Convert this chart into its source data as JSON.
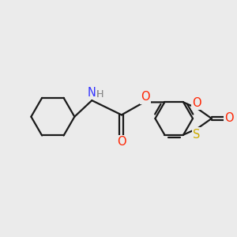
{
  "background_color": "#ebebeb",
  "bond_color": "#1a1a1a",
  "N_color": "#3333ff",
  "O_color": "#ff2200",
  "S_color": "#ccaa00",
  "NH_H_color": "#888888",
  "line_width": 1.6,
  "figsize": [
    3.0,
    3.0
  ],
  "dpi": 100,
  "xlim": [
    -3.2,
    3.2
  ],
  "ylim": [
    -2.2,
    2.2
  ]
}
